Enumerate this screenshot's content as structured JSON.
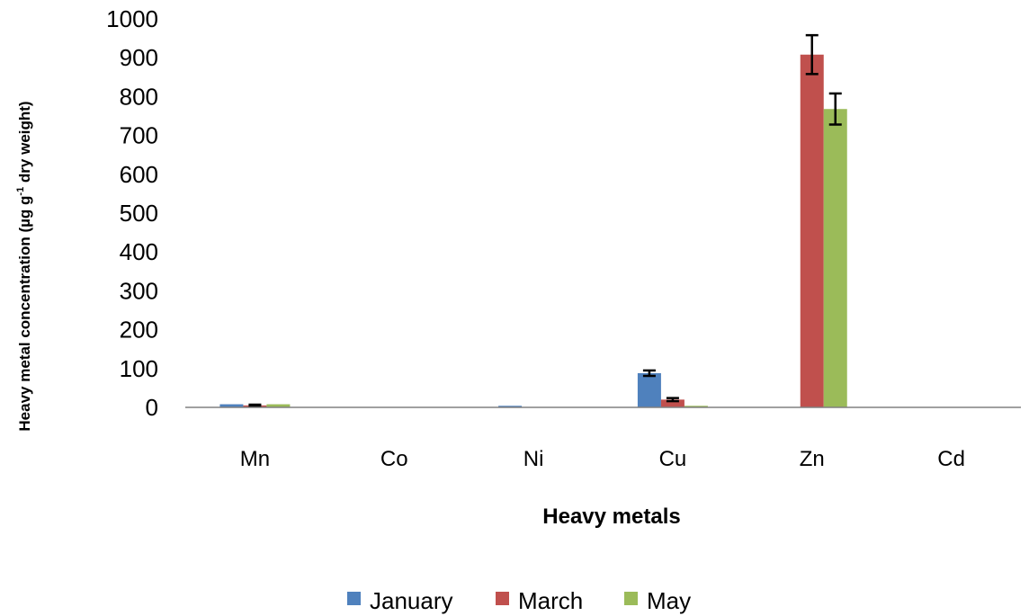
{
  "chart_data": {
    "type": "bar",
    "categories": [
      "Mn",
      "Co",
      "Ni",
      "Cu",
      "Zn",
      "Cd"
    ],
    "series": [
      {
        "name": "January",
        "color": "#4f81bd",
        "values": [
          8,
          0,
          4,
          88,
          0,
          0
        ],
        "errors": [
          null,
          null,
          null,
          7,
          null,
          null
        ]
      },
      {
        "name": "March",
        "color": "#c0504d",
        "values": [
          5,
          0,
          0,
          20,
          908,
          0
        ],
        "errors": [
          2,
          null,
          null,
          4,
          50,
          null
        ]
      },
      {
        "name": "May",
        "color": "#9bbb59",
        "values": [
          8,
          0,
          0,
          4,
          768,
          0
        ],
        "errors": [
          null,
          null,
          null,
          null,
          40,
          null
        ]
      }
    ],
    "xlabel": "Heavy metals",
    "ylabel": {
      "prefix": "Heavy metal concentration  (µg g",
      "sup": "-1",
      "suffix": " dry weight)"
    },
    "ylim": [
      0,
      1000
    ],
    "yticks": [
      "0",
      "100",
      "200",
      "300",
      "400",
      "500",
      "600",
      "700",
      "800",
      "900",
      "1000"
    ],
    "grid": false,
    "legend_position": "bottom"
  }
}
